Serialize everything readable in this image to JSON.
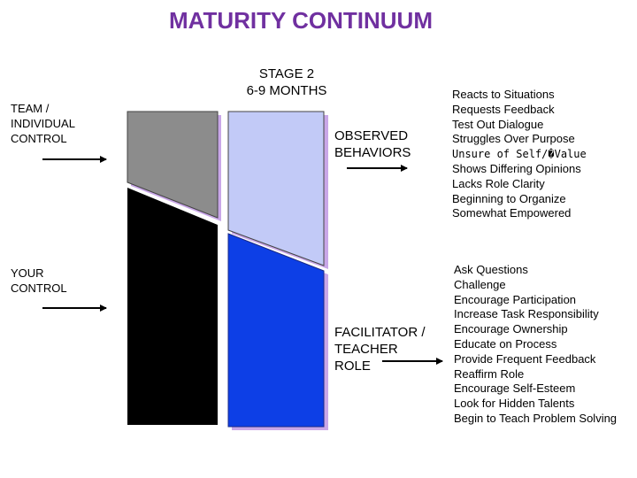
{
  "title": "MATURITY CONTINUUM",
  "stage": {
    "line1": "STAGE 2",
    "line2": "6-9  MONTHS"
  },
  "left_labels": {
    "team": [
      "TEAM /",
      "INDIVIDUAL",
      "CONTROL"
    ],
    "your": [
      "YOUR",
      "CONTROL"
    ]
  },
  "middle_labels": {
    "observed": [
      "OBSERVED",
      "BEHAVIORS"
    ],
    "facilitator": [
      "FACILITATOR /",
      "TEACHER",
      "ROLE"
    ]
  },
  "observed_behaviors": [
    "Reacts to Situations",
    "Requests Feedback",
    "Test Out Dialogue",
    "Struggles Over Purpose",
    "Unsure of Self/�Value",
    "Shows Differing Opinions",
    "Lacks Role Clarity",
    "Beginning to Organize",
    "Somewhat Empowered"
  ],
  "facilitator_role": [
    "Ask Questions",
    "Challenge",
    "Encourage Participation",
    "Increase Task Responsibility",
    "Encourage Ownership",
    "Educate on Process",
    "Provide Frequent Feedback",
    "Reaffirm Role",
    "Encourage Self-Esteem",
    "Look for Hidden Talents",
    "Begin to Teach Problem Solving"
  ],
  "colors": {
    "title": "#7030a0",
    "team_gray": "#8c8c8c",
    "your_black": "#000000",
    "observed_lavender": "#c2caf7",
    "facilitator_blue": "#0d3fe6",
    "shadow": "#c9a7e8"
  }
}
